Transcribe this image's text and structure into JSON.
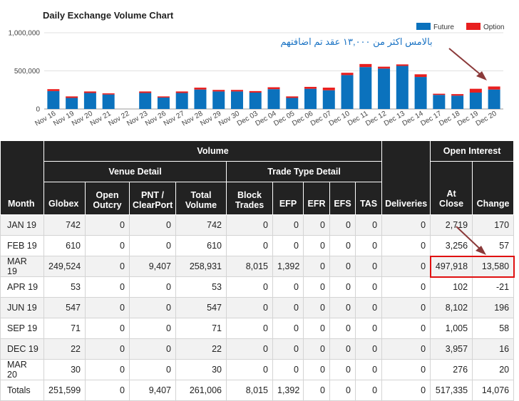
{
  "chart_data": {
    "type": "bar",
    "stacked": true,
    "title": "Daily Exchange Volume Chart",
    "categories": [
      "Nov 16",
      "Nov 19",
      "Nov 20",
      "Nov 21",
      "Nov 22",
      "Nov 23",
      "Nov 26",
      "Nov 27",
      "Nov 28",
      "Nov 29",
      "Nov 30",
      "Dec 03",
      "Dec 04",
      "Dec 05",
      "Dec 06",
      "Dec 07",
      "Dec 10",
      "Dec 11",
      "Dec 12",
      "Dec 13",
      "Dec 14",
      "Dec 17",
      "Dec 18",
      "Dec 19",
      "Dec 20"
    ],
    "series": [
      {
        "name": "Future",
        "color": "#0b72bd",
        "values": [
          235000,
          145000,
          210000,
          190000,
          0,
          210000,
          150000,
          210000,
          255000,
          230000,
          230000,
          215000,
          260000,
          145000,
          265000,
          245000,
          445000,
          550000,
          530000,
          565000,
          420000,
          185000,
          175000,
          215000,
          255000
        ]
      },
      {
        "name": "Option",
        "color": "#e81f1f",
        "values": [
          25000,
          20000,
          20000,
          15000,
          0,
          20000,
          15000,
          20000,
          25000,
          20000,
          20000,
          20000,
          25000,
          20000,
          25000,
          35000,
          30000,
          40000,
          25000,
          20000,
          35000,
          15000,
          20000,
          50000,
          40000
        ]
      }
    ],
    "yticks": [
      "1,000,000",
      "500,000",
      "0"
    ],
    "ylim": [
      0,
      1000000
    ],
    "legend_position": "top-right",
    "annotation": "بالامس اكثر من ١٣,٠٠٠ عقد تم اضافتهم"
  },
  "table": {
    "headers": {
      "month": "Month",
      "volume": "Volume",
      "venue_detail": "Venue Detail",
      "trade_type_detail": "Trade Type Detail",
      "deliveries": "Deliveries",
      "open_interest": "Open Interest",
      "globex": "Globex",
      "open_outcry": "Open Outcry",
      "pnt": "PNT / ClearPort",
      "total_volume": "Total Volume",
      "block_trades": "Block Trades",
      "efp": "EFP",
      "efr": "EFR",
      "efs": "EFS",
      "tas": "TAS",
      "at_close": "At Close",
      "change": "Change"
    },
    "rows": [
      [
        "JAN 19",
        "742",
        "0",
        "0",
        "742",
        "0",
        "0",
        "0",
        "0",
        "0",
        "0",
        "2,719",
        "170"
      ],
      [
        "FEB 19",
        "610",
        "0",
        "0",
        "610",
        "0",
        "0",
        "0",
        "0",
        "0",
        "0",
        "3,256",
        "57"
      ],
      [
        "MAR 19",
        "249,524",
        "0",
        "9,407",
        "258,931",
        "8,015",
        "1,392",
        "0",
        "0",
        "0",
        "0",
        "497,918",
        "13,580"
      ],
      [
        "APR 19",
        "53",
        "0",
        "0",
        "53",
        "0",
        "0",
        "0",
        "0",
        "0",
        "0",
        "102",
        "-21"
      ],
      [
        "JUN 19",
        "547",
        "0",
        "0",
        "547",
        "0",
        "0",
        "0",
        "0",
        "0",
        "0",
        "8,102",
        "196"
      ],
      [
        "SEP 19",
        "71",
        "0",
        "0",
        "71",
        "0",
        "0",
        "0",
        "0",
        "0",
        "0",
        "1,005",
        "58"
      ],
      [
        "DEC 19",
        "22",
        "0",
        "0",
        "22",
        "0",
        "0",
        "0",
        "0",
        "0",
        "0",
        "3,957",
        "16"
      ],
      [
        "MAR 20",
        "30",
        "0",
        "0",
        "30",
        "0",
        "0",
        "0",
        "0",
        "0",
        "0",
        "276",
        "20"
      ]
    ],
    "totals": [
      "Totals",
      "251,599",
      "0",
      "9,407",
      "261,006",
      "8,015",
      "1,392",
      "0",
      "0",
      "0",
      "0",
      "517,335",
      "14,076"
    ]
  }
}
